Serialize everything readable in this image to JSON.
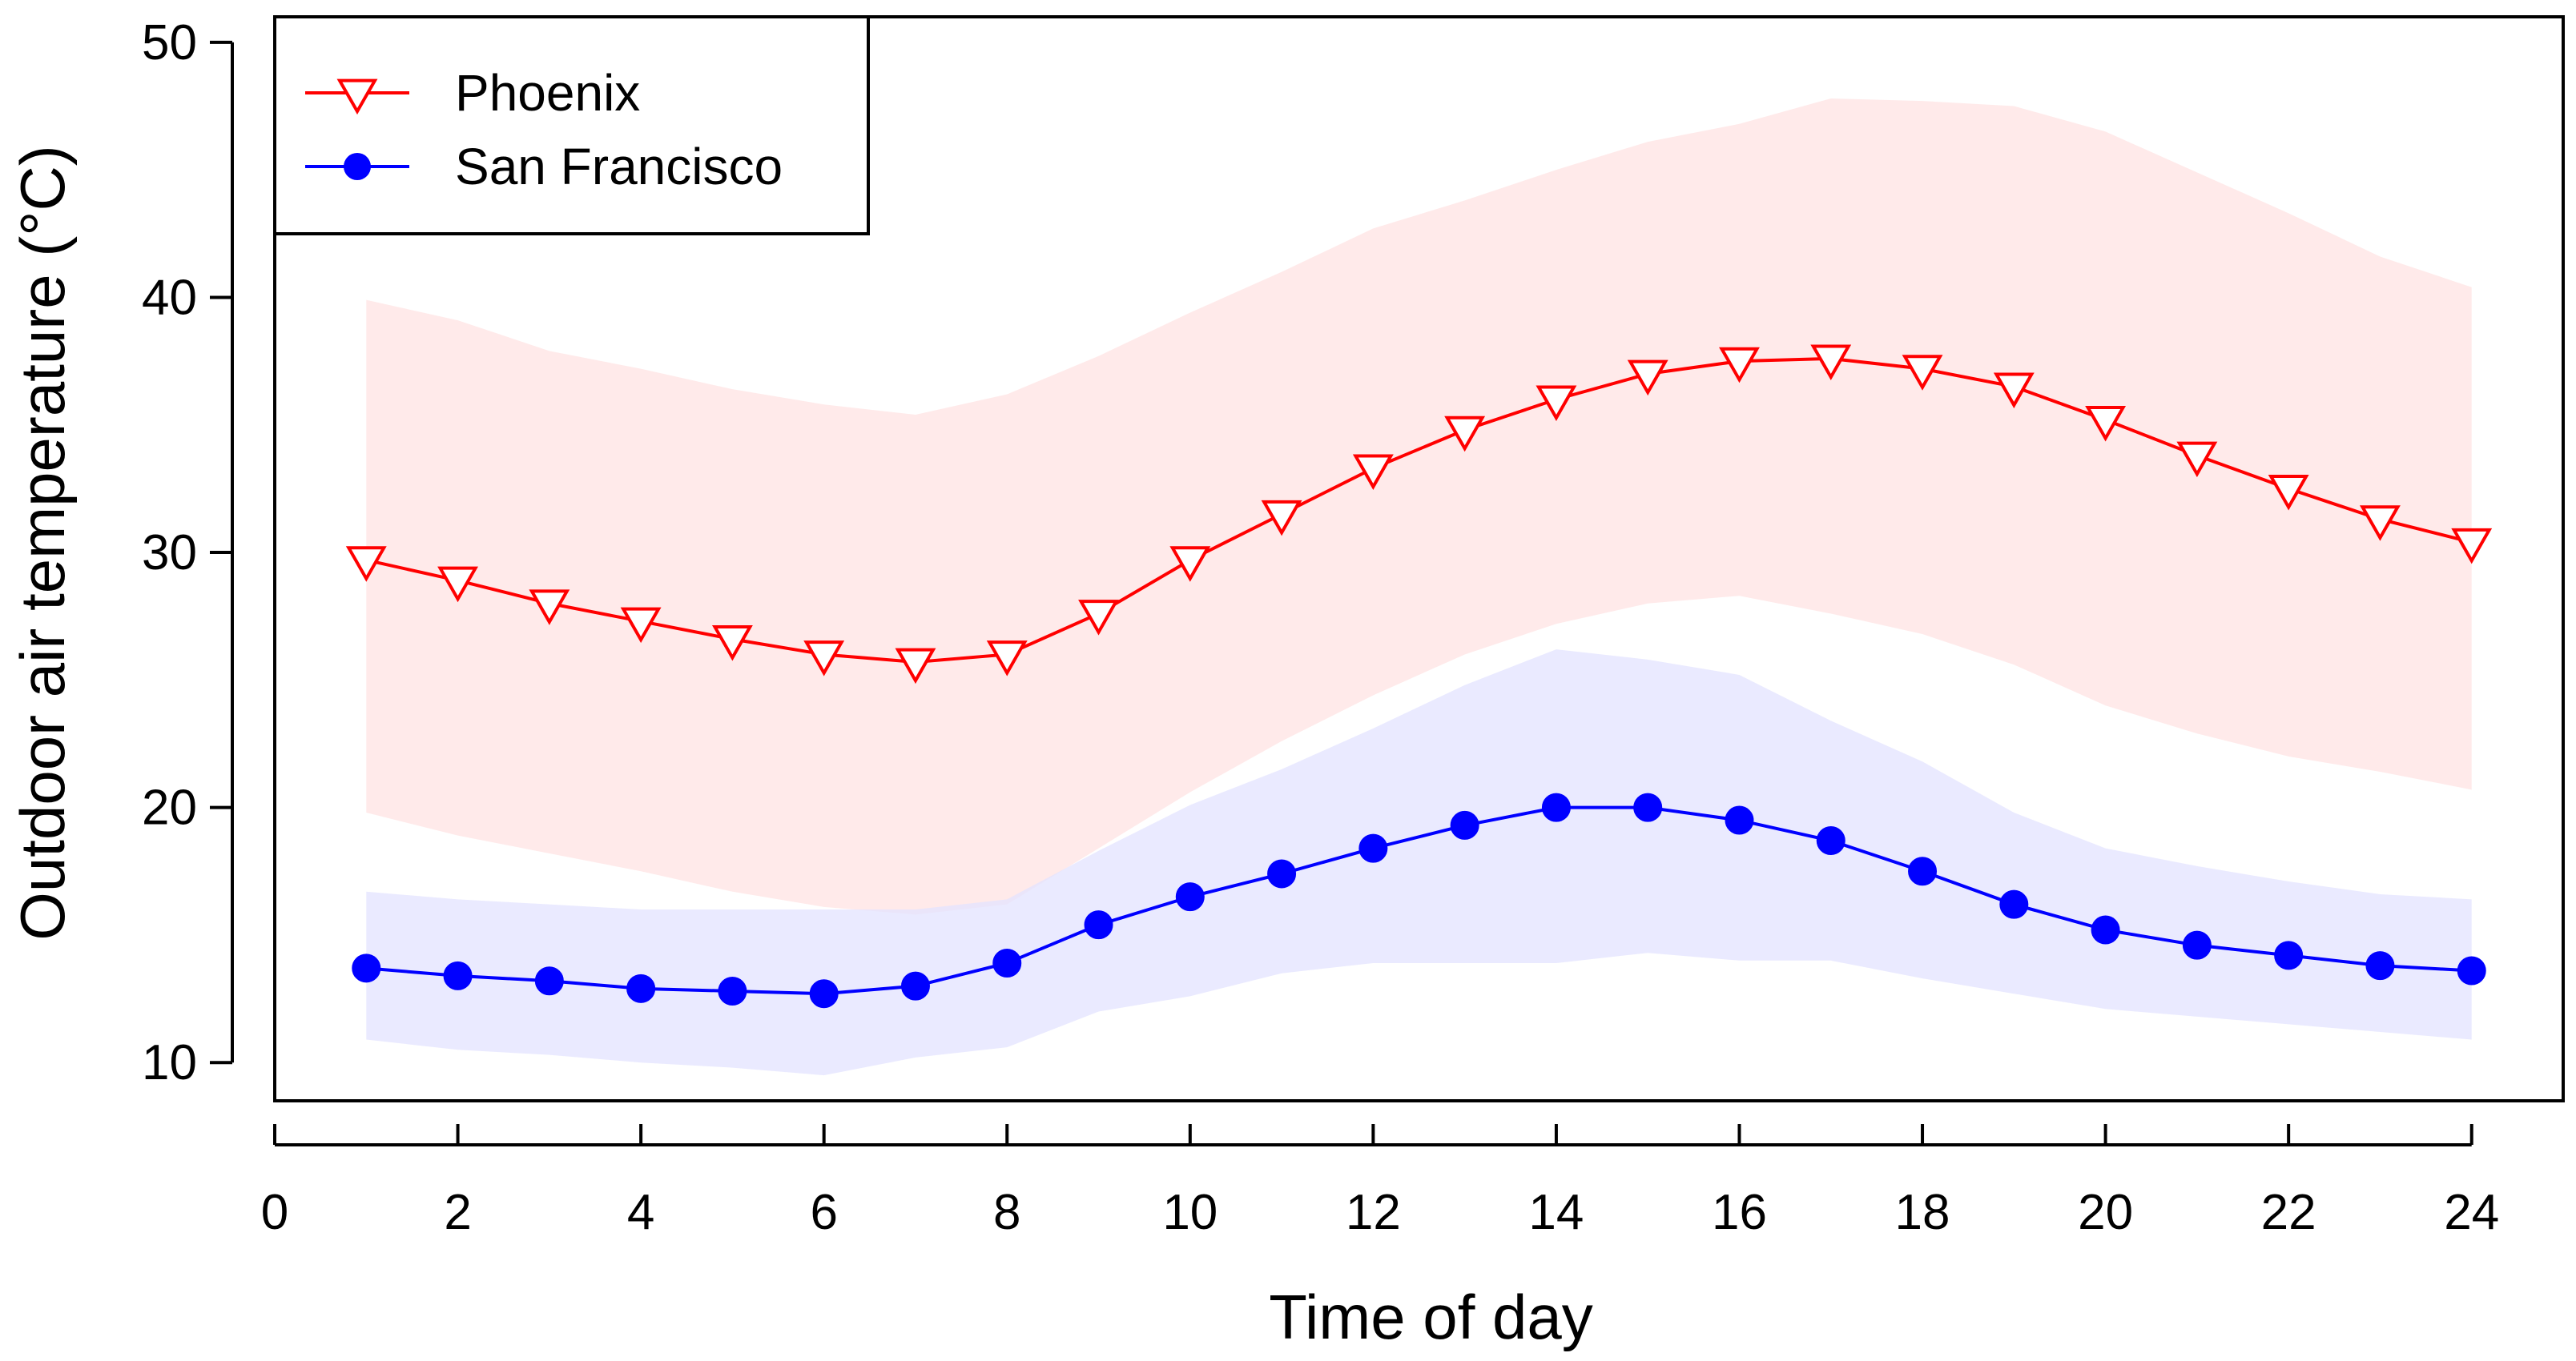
{
  "chart_data": {
    "type": "line",
    "title": "",
    "xlabel": "Time of day",
    "ylabel": "Outdoor air temperature (°C)",
    "xlim": [
      0,
      25
    ],
    "ylim": [
      8.5,
      51
    ],
    "xticks": [
      0,
      2,
      4,
      6,
      8,
      10,
      12,
      14,
      16,
      18,
      20,
      22,
      24
    ],
    "yticks": [
      10,
      20,
      30,
      40,
      50
    ],
    "x": [
      1,
      2,
      3,
      4,
      5,
      6,
      7,
      8,
      9,
      10,
      11,
      12,
      13,
      14,
      15,
      16,
      17,
      18,
      19,
      20,
      21,
      22,
      23,
      24
    ],
    "series": [
      {
        "name": "Phoenix",
        "color": "#ff0000",
        "band_color": "#ffe3e3",
        "marker": "triangle-down-open",
        "values": [
          29.7,
          28.9,
          28.0,
          27.3,
          26.6,
          26.0,
          25.7,
          26.0,
          27.6,
          29.7,
          31.5,
          33.3,
          34.8,
          36.0,
          37.0,
          37.5,
          37.6,
          37.2,
          36.5,
          35.2,
          33.8,
          32.5,
          31.3,
          30.4
        ],
        "band_upper": [
          39.9,
          39.1,
          37.9,
          37.2,
          36.4,
          35.8,
          35.4,
          36.2,
          37.7,
          39.4,
          41.0,
          42.7,
          43.8,
          45.0,
          46.1,
          46.8,
          47.8,
          47.7,
          47.5,
          46.5,
          44.9,
          43.3,
          41.6,
          40.4
        ],
        "band_lower": [
          19.8,
          18.9,
          18.2,
          17.5,
          16.7,
          16.1,
          15.8,
          16.2,
          18.4,
          20.6,
          22.6,
          24.4,
          26.0,
          27.2,
          28.0,
          28.3,
          27.6,
          26.8,
          25.6,
          24.0,
          22.9,
          22.0,
          21.4,
          20.7
        ]
      },
      {
        "name": "San Francisco",
        "color": "#0000ff",
        "band_color": "#e3e3ff",
        "marker": "circle-filled",
        "values": [
          13.7,
          13.4,
          13.2,
          12.9,
          12.8,
          12.7,
          13.0,
          13.9,
          15.4,
          16.5,
          17.4,
          18.4,
          19.3,
          20.0,
          20.0,
          19.5,
          18.7,
          17.5,
          16.2,
          15.2,
          14.6,
          14.2,
          13.8,
          13.6
        ],
        "band_upper": [
          16.7,
          16.4,
          16.2,
          16.0,
          16.0,
          16.0,
          16.0,
          16.4,
          18.3,
          20.1,
          21.5,
          23.1,
          24.8,
          26.2,
          25.8,
          25.2,
          23.4,
          21.8,
          19.8,
          18.4,
          17.7,
          17.1,
          16.6,
          16.4
        ],
        "band_lower": [
          10.9,
          10.5,
          10.3,
          10.0,
          9.8,
          9.5,
          10.2,
          10.6,
          12.0,
          12.6,
          13.5,
          13.9,
          13.9,
          13.9,
          14.3,
          14.0,
          14.0,
          13.3,
          12.7,
          12.1,
          11.8,
          11.5,
          11.2,
          10.9
        ]
      }
    ],
    "legend_position": "top-left",
    "grid": false
  }
}
